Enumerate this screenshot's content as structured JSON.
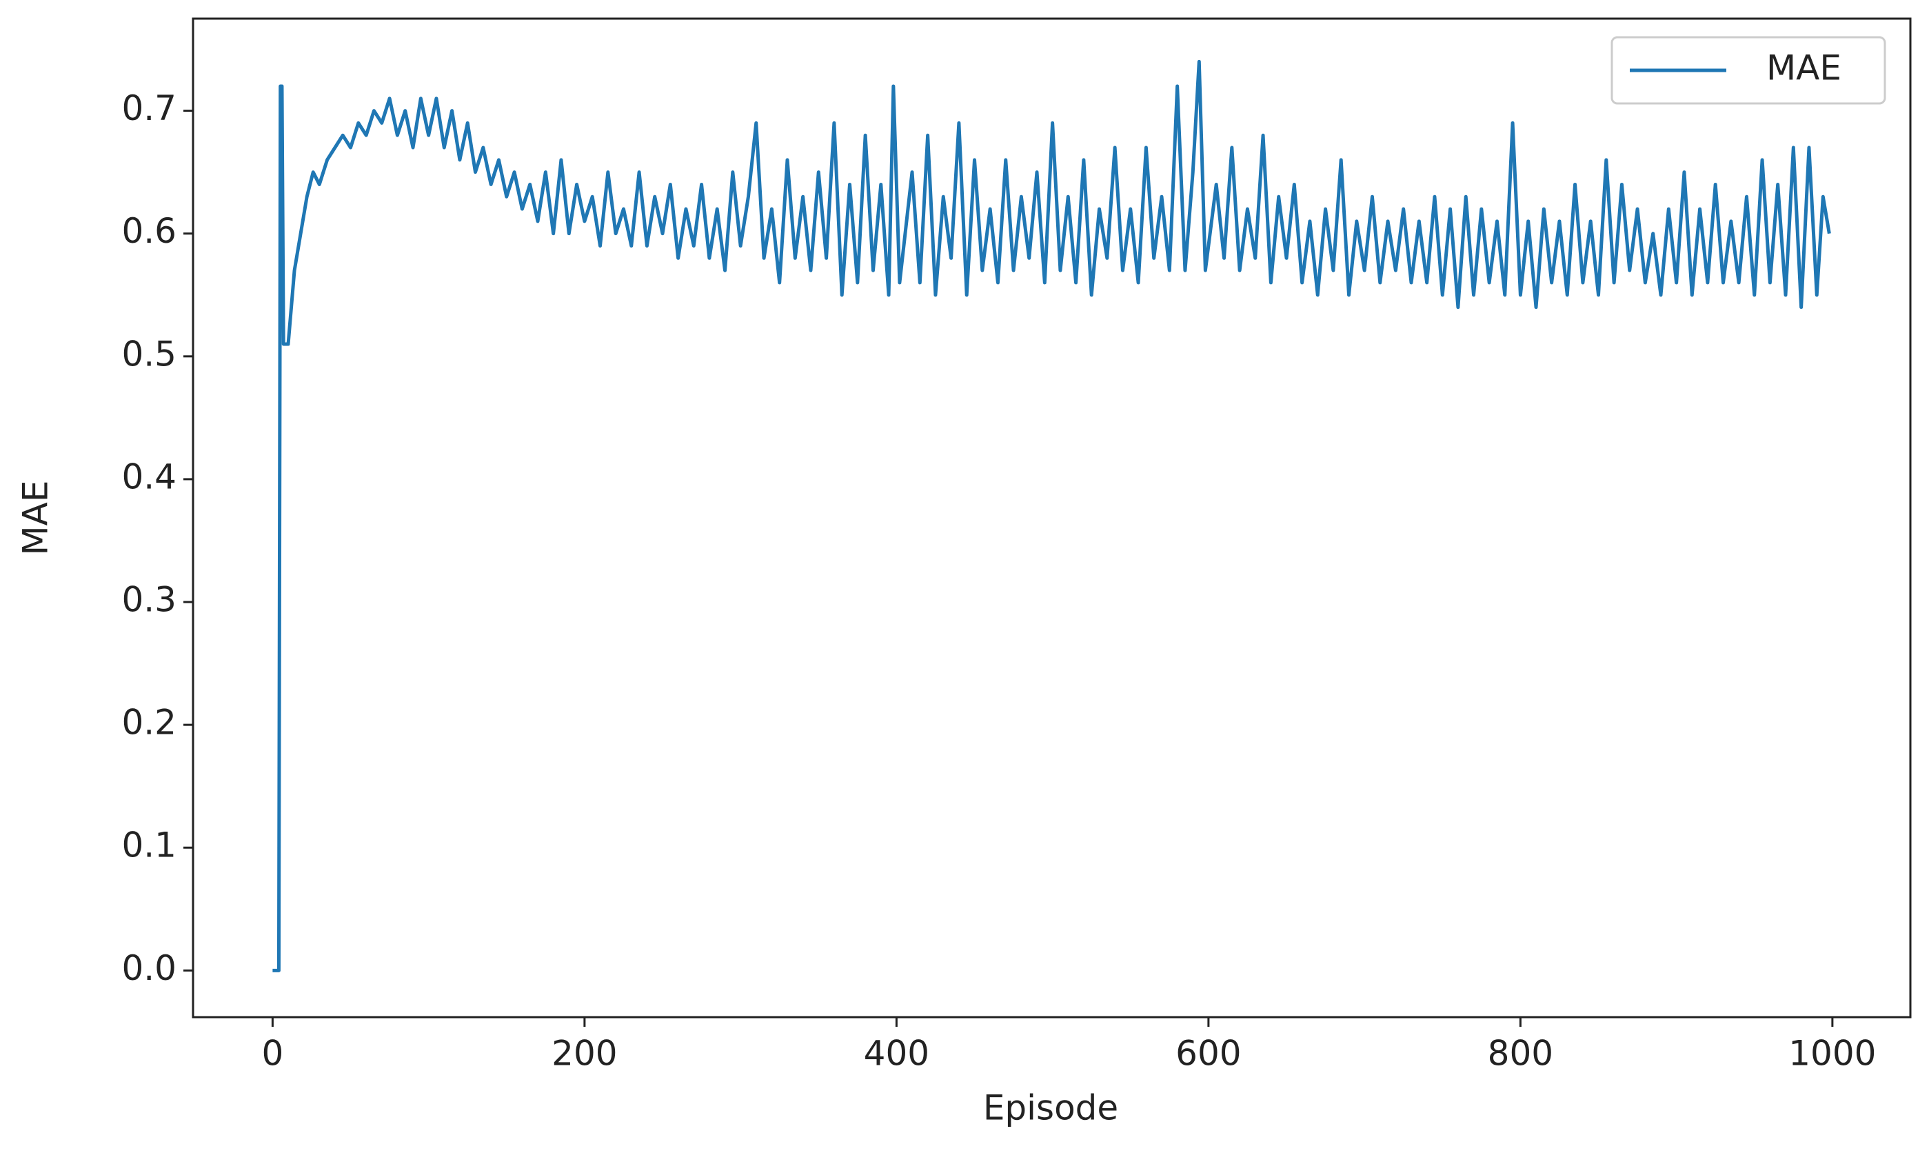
{
  "chart_data": {
    "type": "line",
    "xlabel": "Episode",
    "ylabel": "MAE",
    "xlim": [
      -51,
      1050
    ],
    "ylim": [
      -0.038,
      0.775
    ],
    "xticks": [
      0,
      200,
      400,
      600,
      800,
      1000
    ],
    "yticks": [
      {
        "value": 0,
        "label": "0.0"
      },
      0.1,
      0.2,
      0.3,
      0.4,
      0.5,
      0.6,
      0.7
    ],
    "legend": "upper right",
    "x": [
      0,
      4,
      5,
      6,
      7,
      10,
      14,
      18,
      22,
      26,
      30,
      35,
      40,
      45,
      50,
      55,
      60,
      65,
      70,
      75,
      80,
      85,
      90,
      95,
      100,
      105,
      110,
      115,
      120,
      125,
      130,
      135,
      140,
      145,
      150,
      155,
      160,
      165,
      170,
      175,
      180,
      185,
      190,
      195,
      200,
      205,
      210,
      215,
      220,
      225,
      230,
      235,
      240,
      245,
      250,
      255,
      260,
      265,
      270,
      275,
      280,
      285,
      290,
      295,
      300,
      305,
      310,
      315,
      320,
      325,
      330,
      335,
      340,
      345,
      350,
      355,
      360,
      365,
      370,
      375,
      380,
      385,
      390,
      395,
      398,
      402,
      410,
      415,
      420,
      425,
      430,
      435,
      440,
      445,
      450,
      455,
      460,
      465,
      470,
      475,
      480,
      485,
      490,
      495,
      500,
      505,
      510,
      515,
      520,
      525,
      530,
      535,
      540,
      545,
      550,
      555,
      560,
      565,
      570,
      575,
      580,
      585,
      590,
      594,
      598,
      605,
      610,
      615,
      620,
      625,
      630,
      635,
      640,
      645,
      650,
      655,
      660,
      665,
      670,
      675,
      680,
      685,
      690,
      695,
      700,
      705,
      710,
      715,
      720,
      725,
      730,
      735,
      740,
      745,
      750,
      755,
      760,
      765,
      770,
      775,
      780,
      785,
      790,
      795,
      800,
      805,
      810,
      815,
      820,
      825,
      830,
      835,
      840,
      845,
      850,
      855,
      860,
      865,
      870,
      875,
      880,
      885,
      890,
      895,
      900,
      905,
      910,
      915,
      920,
      925,
      930,
      935,
      940,
      945,
      950,
      955,
      960,
      965,
      970,
      975,
      980,
      985,
      990,
      994,
      998
    ],
    "series": [
      {
        "name": "MAE",
        "color": "#1f77b4",
        "values": [
          0.0,
          0.0,
          0.72,
          0.72,
          0.51,
          0.51,
          0.57,
          0.6,
          0.63,
          0.65,
          0.64,
          0.66,
          0.67,
          0.68,
          0.67,
          0.69,
          0.68,
          0.7,
          0.69,
          0.71,
          0.68,
          0.7,
          0.67,
          0.71,
          0.68,
          0.71,
          0.67,
          0.7,
          0.66,
          0.69,
          0.65,
          0.67,
          0.64,
          0.66,
          0.63,
          0.65,
          0.62,
          0.64,
          0.61,
          0.65,
          0.6,
          0.66,
          0.6,
          0.64,
          0.61,
          0.63,
          0.59,
          0.65,
          0.6,
          0.62,
          0.59,
          0.65,
          0.59,
          0.63,
          0.6,
          0.64,
          0.58,
          0.62,
          0.59,
          0.64,
          0.58,
          0.62,
          0.57,
          0.65,
          0.59,
          0.63,
          0.69,
          0.58,
          0.62,
          0.56,
          0.66,
          0.58,
          0.63,
          0.57,
          0.65,
          0.58,
          0.69,
          0.55,
          0.64,
          0.56,
          0.68,
          0.57,
          0.64,
          0.55,
          0.72,
          0.56,
          0.65,
          0.56,
          0.68,
          0.55,
          0.63,
          0.58,
          0.69,
          0.55,
          0.66,
          0.57,
          0.62,
          0.56,
          0.66,
          0.57,
          0.63,
          0.58,
          0.65,
          0.56,
          0.69,
          0.57,
          0.63,
          0.56,
          0.66,
          0.55,
          0.62,
          0.58,
          0.67,
          0.57,
          0.62,
          0.56,
          0.67,
          0.58,
          0.63,
          0.57,
          0.72,
          0.57,
          0.65,
          0.74,
          0.57,
          0.64,
          0.58,
          0.67,
          0.57,
          0.62,
          0.58,
          0.68,
          0.56,
          0.63,
          0.58,
          0.64,
          0.56,
          0.61,
          0.55,
          0.62,
          0.57,
          0.66,
          0.55,
          0.61,
          0.57,
          0.63,
          0.56,
          0.61,
          0.57,
          0.62,
          0.56,
          0.61,
          0.56,
          0.63,
          0.55,
          0.62,
          0.54,
          0.63,
          0.55,
          0.62,
          0.56,
          0.61,
          0.55,
          0.69,
          0.55,
          0.61,
          0.54,
          0.62,
          0.56,
          0.61,
          0.55,
          0.64,
          0.56,
          0.61,
          0.55,
          0.66,
          0.56,
          0.64,
          0.57,
          0.62,
          0.56,
          0.6,
          0.55,
          0.62,
          0.56,
          0.65,
          0.55,
          0.62,
          0.56,
          0.64,
          0.56,
          0.61,
          0.56,
          0.63,
          0.55,
          0.66,
          0.56,
          0.64,
          0.55,
          0.67,
          0.54,
          0.67,
          0.55,
          0.63,
          0.6
        ]
      }
    ]
  }
}
